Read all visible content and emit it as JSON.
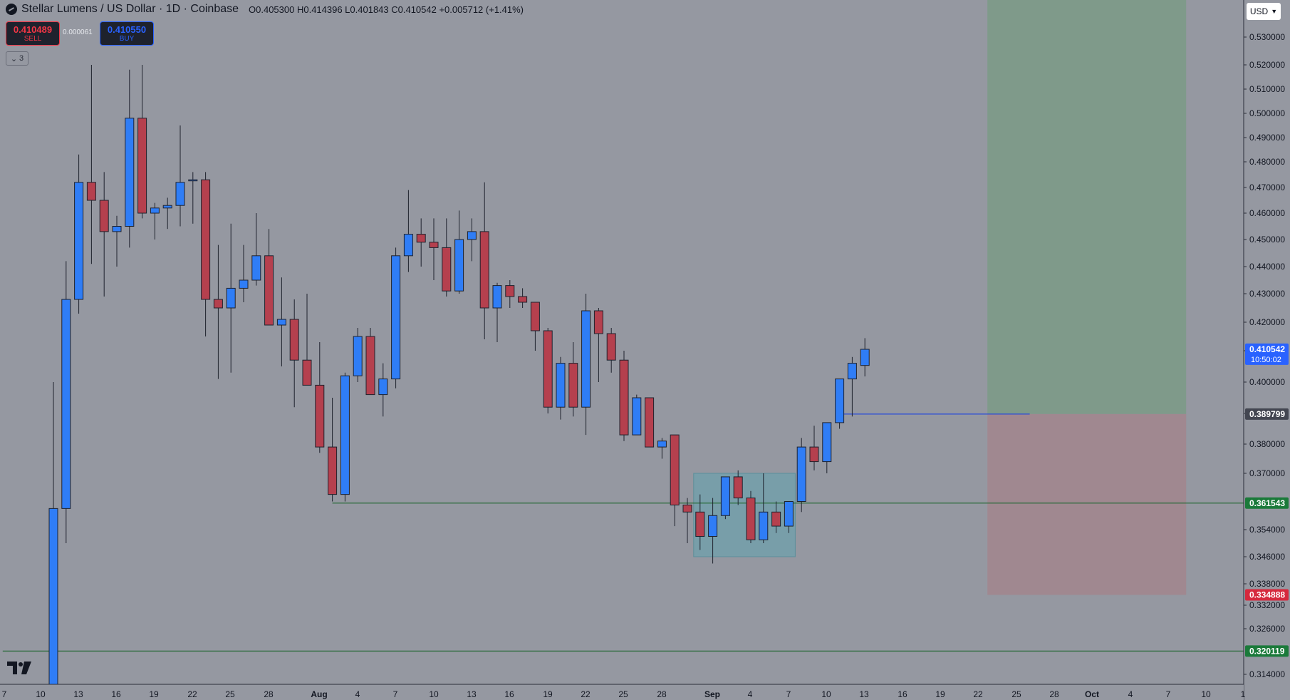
{
  "header": {
    "title": "Stellar Lumens / US Dollar · 1D · Coinbase",
    "ohlc": "O0.405300 H0.414396 L0.401843 C0.410542 +0.005712 (+1.41%)"
  },
  "trade": {
    "sell_price": "0.410489",
    "sell_label": "SELL",
    "spread": "0.000061",
    "buy_price": "0.410550",
    "buy_label": "BUY"
  },
  "indicators_toggle": "3",
  "currency": "USD",
  "colors": {
    "background": "#9598a1",
    "bull": "#2f7df6",
    "bear": "#b5404e",
    "wick": "#1e222d",
    "target_zone": "#7f9a8a",
    "stop_zone": "#a08890",
    "box": "#6fa0ac"
  },
  "chart_data": {
    "type": "candlestick",
    "symbol": "Stellar Lumens / US Dollar",
    "interval": "1D",
    "exchange": "Coinbase",
    "ylim": [
      0.31,
      0.54
    ],
    "y_ticks": [
      "0.530000",
      "0.520000",
      "0.510000",
      "0.500000",
      "0.490000",
      "0.480000",
      "0.470000",
      "0.460000",
      "0.450000",
      "0.440000",
      "0.430000",
      "0.420000",
      "0.410000",
      "0.400000",
      "0.390000",
      "0.380000",
      "0.370000",
      "0.354000",
      "0.346000",
      "0.338000",
      "0.332000",
      "0.326000",
      "0.314000"
    ],
    "x_ticks": [
      "7",
      "10",
      "13",
      "16",
      "19",
      "22",
      "25",
      "28",
      "Aug",
      "4",
      "7",
      "10",
      "13",
      "16",
      "19",
      "22",
      "25",
      "28",
      "Sep",
      "4",
      "7",
      "10",
      "13",
      "16",
      "19",
      "22",
      "25",
      "28",
      "Oct",
      "4",
      "7",
      "10",
      "1"
    ],
    "candles": [
      [
        0.305,
        0.4,
        0.3,
        0.36
      ],
      [
        0.36,
        0.442,
        0.35,
        0.428
      ],
      [
        0.428,
        0.483,
        0.423,
        0.472
      ],
      [
        0.472,
        0.52,
        0.441,
        0.465
      ],
      [
        0.465,
        0.476,
        0.429,
        0.453
      ],
      [
        0.453,
        0.459,
        0.44,
        0.455
      ],
      [
        0.455,
        0.518,
        0.447,
        0.498
      ],
      [
        0.498,
        0.52,
        0.458,
        0.46
      ],
      [
        0.46,
        0.464,
        0.45,
        0.462
      ],
      [
        0.462,
        0.466,
        0.454,
        0.463
      ],
      [
        0.463,
        0.495,
        0.455,
        0.472
      ],
      [
        0.473,
        0.476,
        0.456,
        0.473
      ],
      [
        0.473,
        0.476,
        0.415,
        0.428
      ],
      [
        0.428,
        0.448,
        0.401,
        0.425
      ],
      [
        0.425,
        0.456,
        0.403,
        0.432
      ],
      [
        0.432,
        0.448,
        0.427,
        0.435
      ],
      [
        0.435,
        0.46,
        0.433,
        0.444
      ],
      [
        0.444,
        0.454,
        0.419,
        0.419
      ],
      [
        0.419,
        0.436,
        0.405,
        0.421
      ],
      [
        0.421,
        0.428,
        0.392,
        0.407
      ],
      [
        0.407,
        0.43,
        0.399,
        0.399
      ],
      [
        0.399,
        0.413,
        0.377,
        0.379
      ],
      [
        0.379,
        0.395,
        0.362,
        0.364
      ],
      [
        0.364,
        0.403,
        0.362,
        0.402
      ],
      [
        0.402,
        0.418,
        0.4,
        0.415
      ],
      [
        0.415,
        0.418,
        0.396,
        0.396
      ],
      [
        0.396,
        0.406,
        0.389,
        0.401
      ],
      [
        0.401,
        0.447,
        0.398,
        0.444
      ],
      [
        0.444,
        0.469,
        0.438,
        0.452
      ],
      [
        0.452,
        0.458,
        0.44,
        0.449
      ],
      [
        0.449,
        0.458,
        0.435,
        0.447
      ],
      [
        0.447,
        0.458,
        0.429,
        0.431
      ],
      [
        0.431,
        0.461,
        0.43,
        0.45
      ],
      [
        0.45,
        0.458,
        0.442,
        0.453
      ],
      [
        0.453,
        0.472,
        0.414,
        0.425
      ],
      [
        0.425,
        0.434,
        0.413,
        0.433
      ],
      [
        0.433,
        0.435,
        0.425,
        0.429
      ],
      [
        0.429,
        0.432,
        0.425,
        0.427
      ],
      [
        0.427,
        0.427,
        0.41,
        0.417
      ],
      [
        0.417,
        0.418,
        0.39,
        0.392
      ],
      [
        0.392,
        0.408,
        0.388,
        0.406
      ],
      [
        0.406,
        0.413,
        0.389,
        0.392
      ],
      [
        0.392,
        0.43,
        0.383,
        0.424
      ],
      [
        0.424,
        0.425,
        0.4,
        0.416
      ],
      [
        0.416,
        0.418,
        0.403,
        0.407
      ],
      [
        0.407,
        0.41,
        0.381,
        0.383
      ],
      [
        0.383,
        0.396,
        0.384,
        0.395
      ],
      [
        0.395,
        0.395,
        0.38,
        0.379
      ],
      [
        0.379,
        0.382,
        0.375,
        0.381
      ],
      [
        0.383,
        0.383,
        0.355,
        0.361
      ],
      [
        0.361,
        0.363,
        0.35,
        0.359
      ],
      [
        0.359,
        0.364,
        0.348,
        0.352
      ],
      [
        0.352,
        0.363,
        0.344,
        0.358
      ],
      [
        0.358,
        0.369,
        0.357,
        0.369
      ],
      [
        0.369,
        0.371,
        0.361,
        0.363
      ],
      [
        0.363,
        0.365,
        0.35,
        0.351
      ],
      [
        0.351,
        0.37,
        0.35,
        0.359
      ],
      [
        0.359,
        0.362,
        0.353,
        0.355
      ],
      [
        0.355,
        0.36,
        0.353,
        0.362
      ],
      [
        0.362,
        0.382,
        0.359,
        0.379
      ],
      [
        0.379,
        0.386,
        0.371,
        0.374
      ],
      [
        0.374,
        0.386,
        0.37,
        0.387
      ],
      [
        0.387,
        0.399,
        0.385,
        0.401
      ],
      [
        0.401,
        0.408,
        0.389,
        0.406
      ],
      [
        0.4053,
        0.4144,
        0.4018,
        0.4105
      ]
    ],
    "price_labels": [
      {
        "value": 0.410542,
        "text": "0.410542",
        "time": "10:50:02",
        "color": "#2962ff"
      },
      {
        "value": 0.389799,
        "text": "0.389799",
        "color": "#434651"
      },
      {
        "value": 0.361543,
        "text": "0.361543",
        "color": "#1b7a3a"
      },
      {
        "value": 0.334888,
        "text": "0.334888",
        "color": "#d6293d"
      },
      {
        "value": 0.320119,
        "text": "0.320119",
        "color": "#1b7a3a"
      }
    ],
    "horizontal_lines": [
      {
        "value": 0.361543,
        "from_index": 22,
        "color": "#2a6b3a"
      },
      {
        "value": 0.320119,
        "from_index": -4,
        "color": "#2a6b3a"
      },
      {
        "value": 0.389799,
        "from_index": 62,
        "to_index": 77,
        "color": "#2a4bd8"
      }
    ],
    "position": {
      "entry": 0.389799,
      "target": 0.54,
      "stop": 0.334888,
      "from_index": 74,
      "to_index": 89
    },
    "zone_box": {
      "from_index": 51,
      "to_index": 58,
      "top": 0.37,
      "bottom": 0.346
    }
  }
}
